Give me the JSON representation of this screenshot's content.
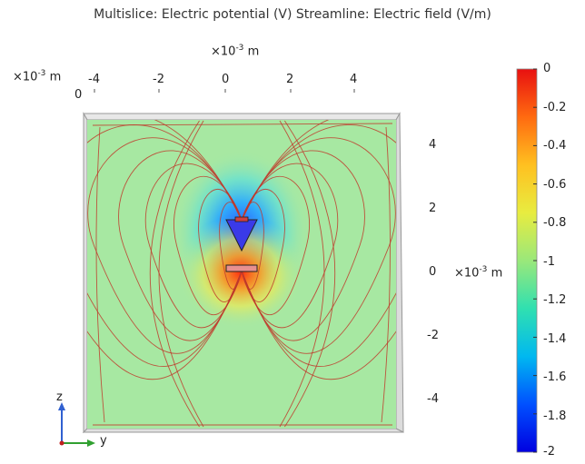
{
  "chart_data": {
    "type": "heatmap",
    "title": "Multislice: Electric potential (V)  Streamline: Electric field (V/m)",
    "x_axis": {
      "unit_prefix": "×10",
      "unit_exp": "-3",
      "unit": "m",
      "ticks": [
        "-4",
        "-2",
        "0",
        "2",
        "4"
      ],
      "range": [
        -5,
        5
      ]
    },
    "depth_axis": {
      "unit_prefix": "×10",
      "unit_exp": "-3",
      "unit": "m",
      "ticks": [
        "0"
      ]
    },
    "z_axis": {
      "unit_prefix": "×10",
      "unit_exp": "-3",
      "unit": "m",
      "ticks": [
        "4",
        "2",
        "0",
        "-2",
        "-4"
      ],
      "range": [
        -5,
        5
      ]
    },
    "colorbar": {
      "ticks": [
        "0",
        "-0.2",
        "-0.4",
        "-0.6",
        "-0.8",
        "-1",
        "-1.2",
        "-1.4",
        "-1.6",
        "-1.8",
        "-2"
      ],
      "min": -2,
      "max": 0,
      "colormap": [
        "#0000e0",
        "#0050ff",
        "#00b8f0",
        "#30e0b0",
        "#9ae87a",
        "#e8ec40",
        "#ffc020",
        "#ff6a10",
        "#e81010"
      ]
    },
    "electrode_top": {
      "y": 0.5,
      "z": 1.2,
      "shape": "cone"
    },
    "electrode_bottom": {
      "y": 0.5,
      "z": 0.2,
      "shape": "plate"
    },
    "background_color": "#a7e8a2",
    "streamline_color": "#c0392b"
  },
  "triad": {
    "vertical_label": "z",
    "horizontal_label": "y"
  }
}
